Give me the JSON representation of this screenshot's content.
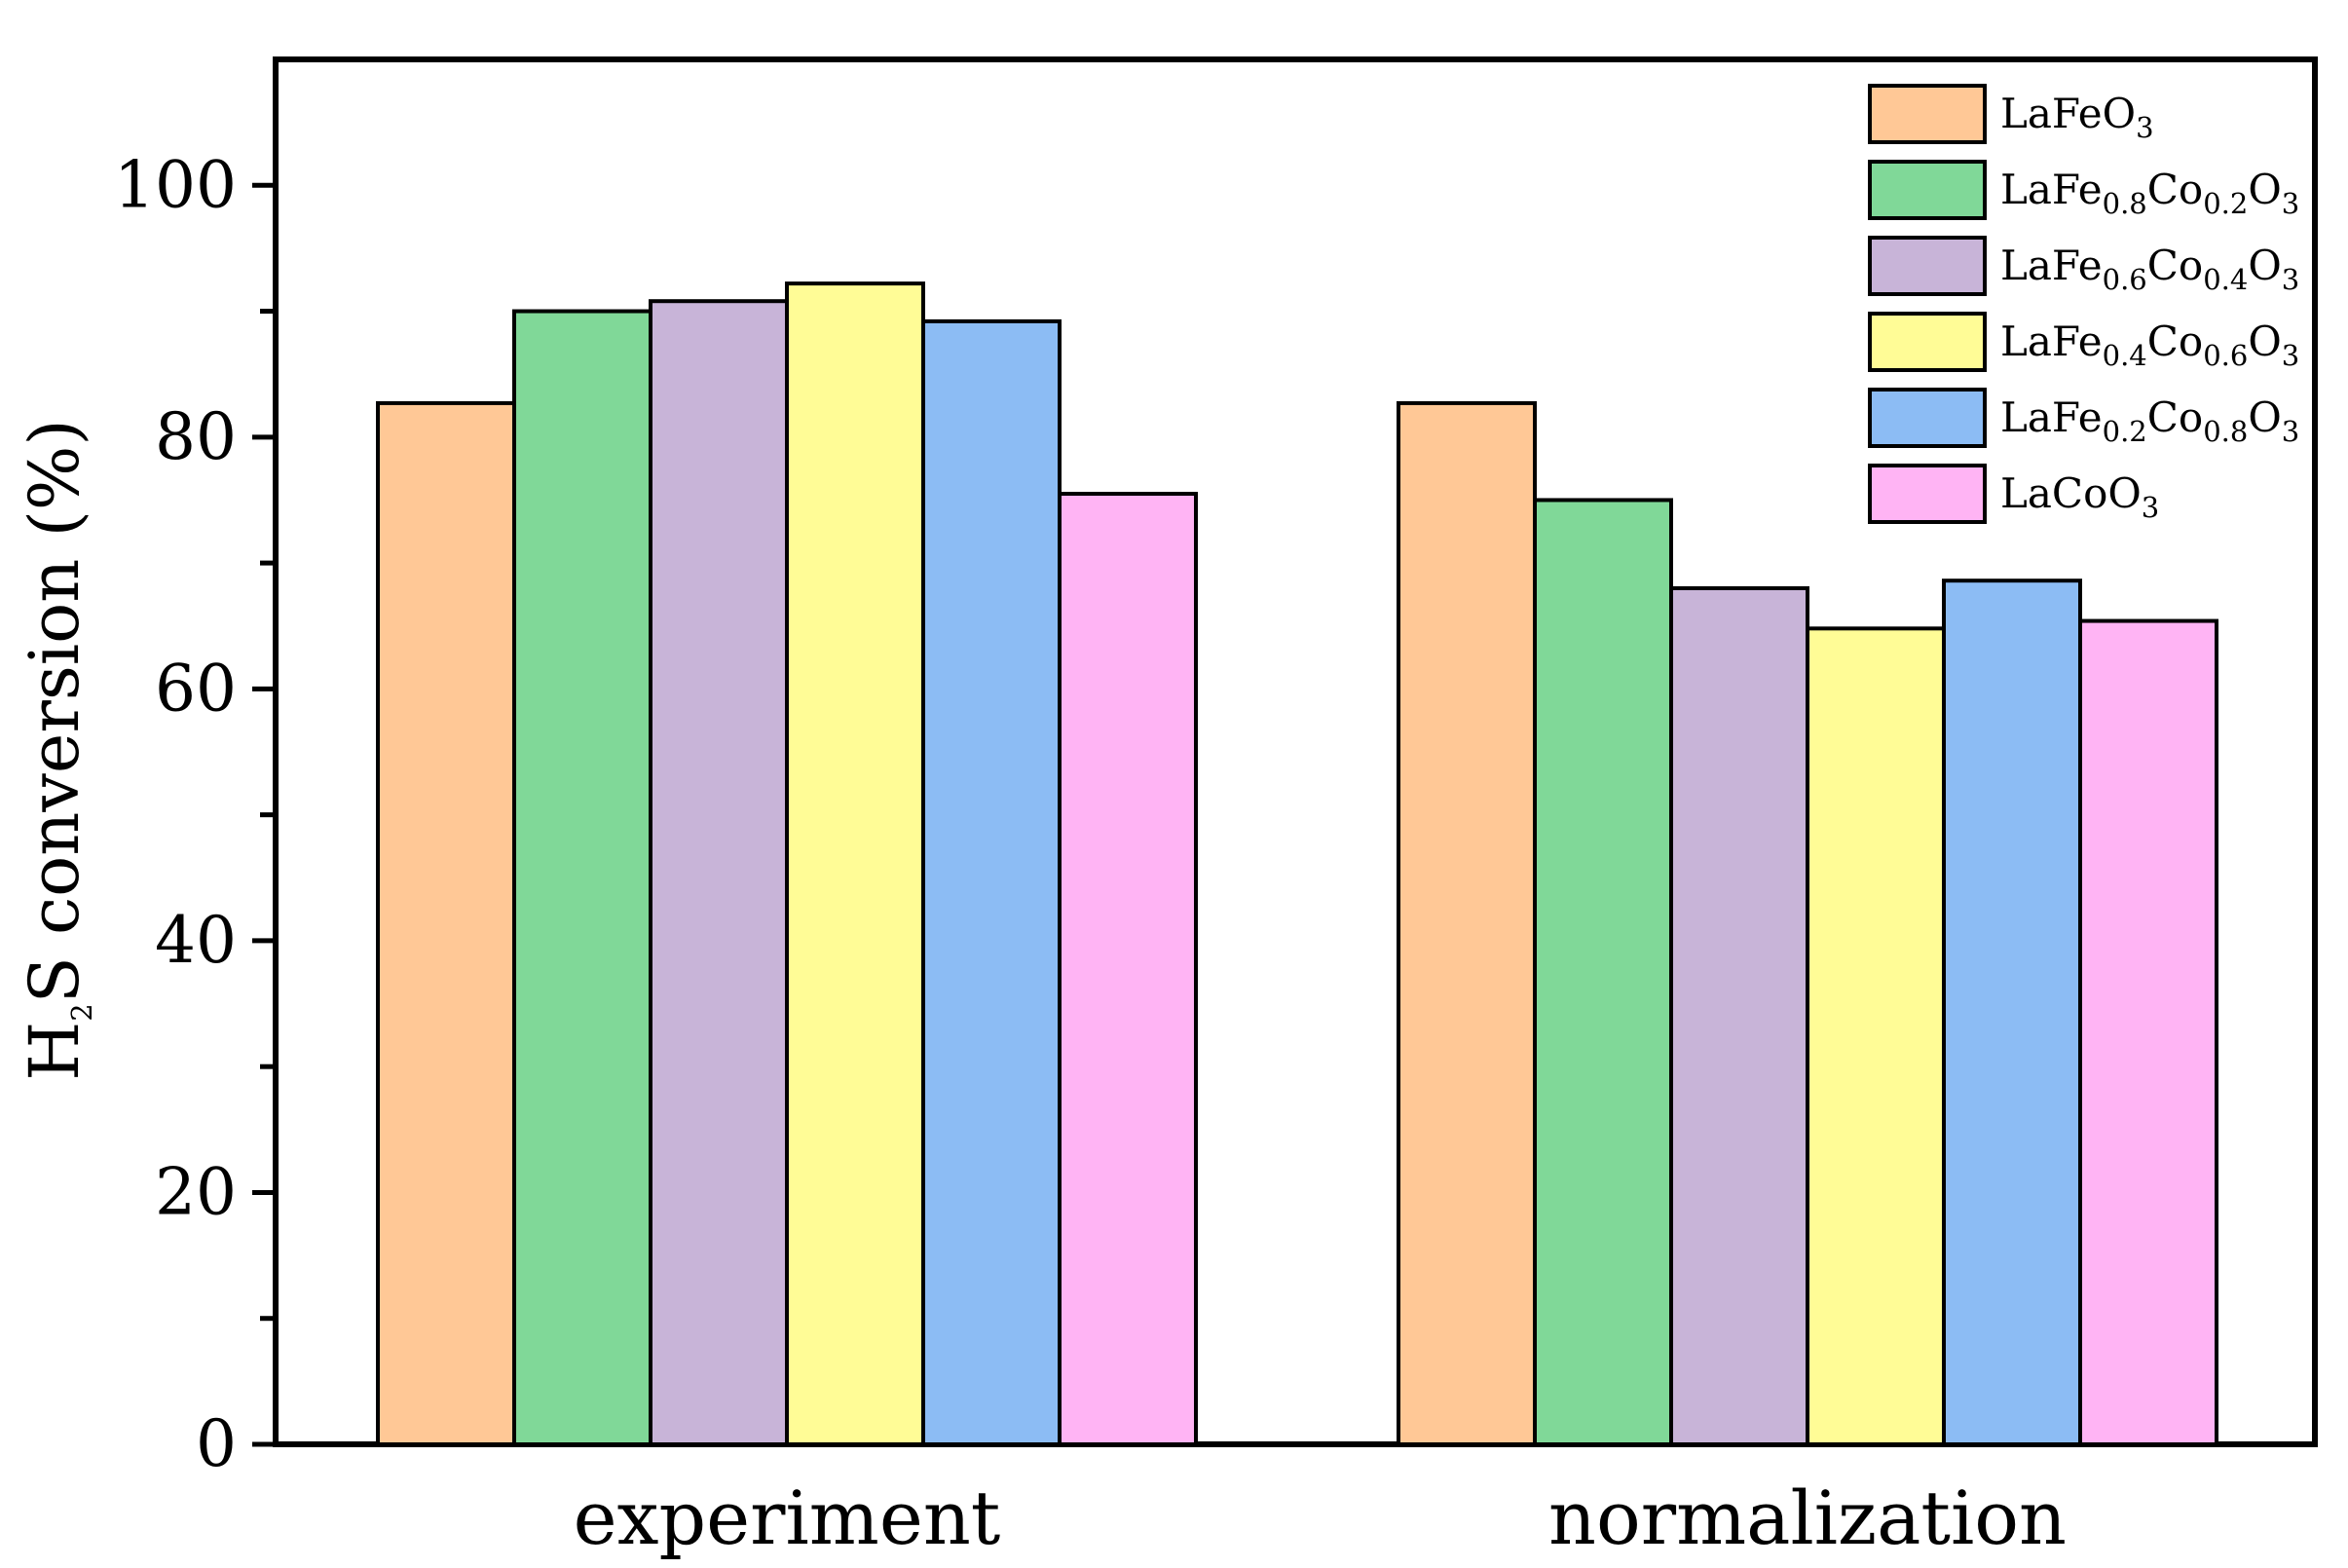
{
  "chart_data": {
    "type": "bar",
    "title": "",
    "xlabel": "",
    "ylabel": {
      "prefix": "H",
      "sub": "2",
      "suffix": "S conversion (%)"
    },
    "categories": [
      "experiment",
      "normalization"
    ],
    "ylim": [
      0,
      110
    ],
    "yticks": [
      "0",
      "20",
      "40",
      "60",
      "80",
      "100"
    ],
    "legend_position": "top-right",
    "series": [
      {
        "name": "LaFeO3",
        "label_parts": [
          {
            "t": "LaFeO"
          },
          {
            "t": "3",
            "sub": true
          }
        ],
        "color": "#FFC896",
        "values": [
          82.7,
          82.7
        ]
      },
      {
        "name": "LaFe0.8Co0.2O3",
        "label_parts": [
          {
            "t": "LaFe"
          },
          {
            "t": "0.8",
            "sub": true
          },
          {
            "t": "Co"
          },
          {
            "t": "0.2",
            "sub": true
          },
          {
            "t": "O"
          },
          {
            "t": "3",
            "sub": true
          }
        ],
        "color": "#80D898",
        "values": [
          90.0,
          75.0
        ]
      },
      {
        "name": "LaFe0.6Co0.4O3",
        "label_parts": [
          {
            "t": "LaFe"
          },
          {
            "t": "0.6",
            "sub": true
          },
          {
            "t": "Co"
          },
          {
            "t": "0.4",
            "sub": true
          },
          {
            "t": "O"
          },
          {
            "t": "3",
            "sub": true
          }
        ],
        "color": "#C8B4D8",
        "values": [
          90.8,
          68.0
        ]
      },
      {
        "name": "LaFe0.4Co0.6O3",
        "label_parts": [
          {
            "t": "LaFe"
          },
          {
            "t": "0.4",
            "sub": true
          },
          {
            "t": "Co"
          },
          {
            "t": "0.6",
            "sub": true
          },
          {
            "t": "O"
          },
          {
            "t": "3",
            "sub": true
          }
        ],
        "color": "#FFFC96",
        "values": [
          92.2,
          64.8
        ]
      },
      {
        "name": "LaFe0.2Co0.8O3",
        "label_parts": [
          {
            "t": "LaFe"
          },
          {
            "t": "0.2",
            "sub": true
          },
          {
            "t": "Co"
          },
          {
            "t": "0.8",
            "sub": true
          },
          {
            "t": "O"
          },
          {
            "t": "3",
            "sub": true
          }
        ],
        "color": "#8CBCF4",
        "values": [
          89.2,
          68.6
        ]
      },
      {
        "name": "LaCoO3",
        "label_parts": [
          {
            "t": "LaCoO"
          },
          {
            "t": "3",
            "sub": true
          }
        ],
        "color": "#FFB4F4",
        "values": [
          75.5,
          65.4
        ]
      }
    ]
  }
}
